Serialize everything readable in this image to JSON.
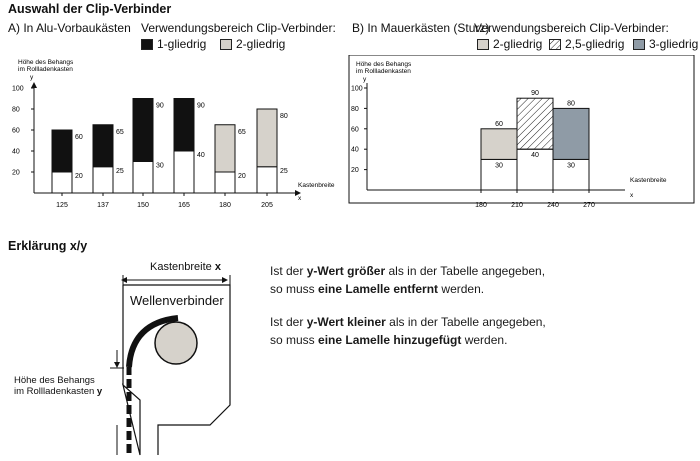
{
  "page_title": "Auswahl der Clip-Verbinder",
  "colors": {
    "one_part": "#111111",
    "two_part": "#d6d2cb",
    "two_half_part": "hatched",
    "three_part": "#8f9ba6"
  },
  "section_a": {
    "label": "A) In Alu-Vorbaukästen",
    "legend_title": "Verwendungsbereich Clip-Verbinder:",
    "legend": [
      {
        "label": "1-gliedrig",
        "color": "#111111"
      },
      {
        "label": "2-gliedrig",
        "color": "#d6d2cb"
      }
    ]
  },
  "section_b": {
    "label": "B) In Mauerkästen (Sturz)",
    "legend_title": "Verwendungsbereich Clip-Verbinder:",
    "legend": [
      {
        "label": "2-gliedrig",
        "color": "#d6d2cb"
      },
      {
        "label": "2,5-gliedrig",
        "color": "hatched"
      },
      {
        "label": "3-gliedrig",
        "color": "#8f9ba6"
      }
    ]
  },
  "chart_data": [
    {
      "type": "bar",
      "title": "A) In Alu-Vorbaukästen",
      "ylabel_lines": [
        "Höhe des Behangs",
        "im Rollladenkasten",
        "y"
      ],
      "xlabel_lines": [
        "Kastenbreite",
        "x"
      ],
      "yticks": [
        "20",
        "40",
        "60",
        "80",
        "100"
      ],
      "ylim": [
        0,
        100
      ],
      "categories": [
        "125",
        "137",
        "150",
        "165",
        "180",
        "205"
      ],
      "series": [
        {
          "name": "1-gliedrig",
          "lower": [
            20,
            25,
            30,
            40,
            null,
            null
          ],
          "upper": [
            60,
            65,
            90,
            90,
            null,
            null
          ]
        },
        {
          "name": "2-gliedrig",
          "lower": [
            null,
            null,
            null,
            null,
            20,
            25
          ],
          "upper": [
            null,
            null,
            null,
            null,
            65,
            80
          ]
        }
      ]
    },
    {
      "type": "bar",
      "title": "B) In Mauerkästen (Sturz)",
      "ylabel_lines": [
        "Höhe des Behangs",
        "im Rollladenkasten",
        "y"
      ],
      "xlabel_lines": [
        "Kastenbreite",
        "x"
      ],
      "yticks": [
        "20",
        "40",
        "60",
        "80",
        "100"
      ],
      "ylim": [
        0,
        100
      ],
      "x_ticks": [
        "180",
        "210",
        "240",
        "270"
      ],
      "bars": [
        {
          "name": "2-gliedrig",
          "x_from": 180,
          "x_to": 210,
          "lower": 30,
          "upper": 60
        },
        {
          "name": "2,5-gliedrig",
          "x_from": 210,
          "x_to": 240,
          "lower": 40,
          "upper": 90
        },
        {
          "name": "3-gliedrig",
          "x_from": 240,
          "x_to": 270,
          "lower": 30,
          "upper": 80
        }
      ]
    }
  ],
  "explanation": {
    "heading": "Erklärung x/y",
    "box_width_label": "Kastenbreite",
    "box_width_var": "x",
    "shaft_connector_label": "Wellenverbinder",
    "height_label_line1": "Höhe des Behangs",
    "height_label_line2": "im Rollladenkasten",
    "height_var": "y",
    "para1": {
      "t1": "Ist der ",
      "b1": "y-Wert größer",
      "t2": " als in der Tabelle angegeben,",
      "t3": "so muss ",
      "b2": "eine Lamelle entfernt",
      "t4": " werden."
    },
    "para2": {
      "t1": "Ist der ",
      "b1": "y-Wert kleiner",
      "t2": " als in der Tabelle angegeben,",
      "t3": "so muss ",
      "b2": "eine Lamelle hinzugefügt",
      "t4": " werden."
    }
  }
}
